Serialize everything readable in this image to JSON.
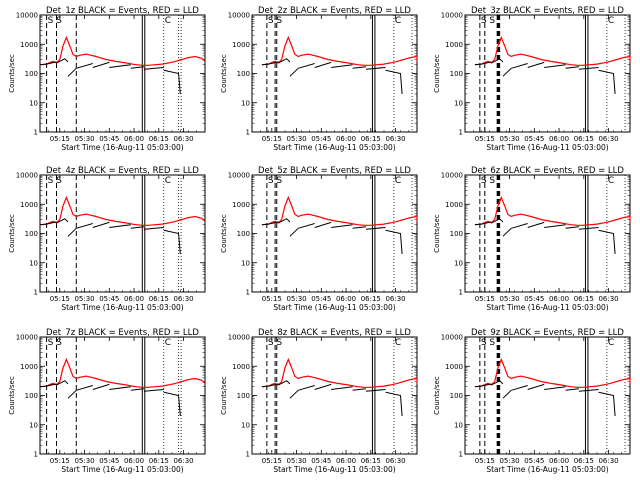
{
  "chart_data": {
    "type": "line",
    "yscale": "log",
    "ylim": [
      1,
      10000
    ],
    "xlim_minutes_from_start": [
      0,
      100
    ],
    "common": {
      "ylabel": "Counts/sec",
      "xlabel": "Start Time (16-Aug-11 05:03:00)",
      "yticks": [
        "1",
        "10",
        "100",
        "1000",
        "10000"
      ],
      "xticks_type_a": [
        "05:15",
        "05:30",
        "05:45",
        "06:00",
        "06:15",
        "06:30"
      ],
      "xticks_type_b": [
        "05:15",
        "05:30",
        "05:45",
        "06:00",
        "06:15",
        "06:30"
      ],
      "series_colors": {
        "events": "#000000",
        "lld": "#ff0000"
      },
      "annotations": {
        "s_markers": "S S",
        "c_marker": "C"
      }
    },
    "panels": [
      {
        "title": "Det_1z BLACK = Events, RED = LLD",
        "xtick_set": "a",
        "dash_lines": [
          4,
          10,
          22
        ],
        "solid_lines": [
          62,
          63.5
        ],
        "dot_lines": [
          75,
          84,
          85.5
        ]
      },
      {
        "title": "Det_2z BLACK = Events, RED = LLD",
        "xtick_set": "b",
        "dash_lines": [
          9,
          14,
          15
        ],
        "solid_lines": [
          73,
          74.5
        ],
        "dot_lines": [
          86,
          97
        ]
      },
      {
        "title": "Det_3z BLACK = Events, RED = LLD",
        "xtick_set": "b",
        "dash_lines": [
          9,
          12,
          19.5,
          20,
          20.5,
          21
        ],
        "solid_lines": [
          73,
          74.5
        ],
        "dot_lines": [
          86,
          97
        ]
      },
      {
        "title": "Det_4z BLACK = Events, RED = LLD",
        "xtick_set": "a",
        "dash_lines": [
          4,
          10,
          22
        ],
        "solid_lines": [
          62,
          63.5
        ],
        "dot_lines": [
          75,
          84,
          85.5
        ]
      },
      {
        "title": "Det_5z BLACK = Events, RED = LLD",
        "xtick_set": "b",
        "dash_lines": [
          9,
          14,
          15
        ],
        "solid_lines": [
          73,
          74.5
        ],
        "dot_lines": [
          86,
          97
        ]
      },
      {
        "title": "Det_6z BLACK = Events, RED = LLD",
        "xtick_set": "b",
        "dash_lines": [
          9,
          12,
          19.5,
          20,
          20.5,
          21
        ],
        "solid_lines": [
          73,
          74.5
        ],
        "dot_lines": [
          86,
          97
        ]
      },
      {
        "title": "Det_7z BLACK = Events, RED = LLD",
        "xtick_set": "a",
        "dash_lines": [
          4,
          10,
          22
        ],
        "solid_lines": [
          62,
          63.5
        ],
        "dot_lines": [
          75,
          84,
          85.5
        ]
      },
      {
        "title": "Det_8z BLACK = Events, RED = LLD",
        "xtick_set": "b",
        "dash_lines": [
          9,
          14,
          15
        ],
        "solid_lines": [
          73,
          74.5
        ],
        "dot_lines": [
          86,
          97
        ]
      },
      {
        "title": "Det_9z BLACK = Events, RED = LLD",
        "xtick_set": "b",
        "dash_lines": [
          9,
          12,
          19.5,
          20,
          20.5,
          21
        ],
        "solid_lines": [
          73,
          74.5
        ],
        "dot_lines": [
          86,
          97
        ]
      }
    ],
    "series_template": {
      "lld_red": {
        "x": [
          0,
          4,
          6,
          8,
          10,
          12,
          14,
          16,
          18,
          20,
          22,
          24,
          28,
          34,
          40,
          46,
          52,
          58,
          62,
          66,
          70,
          74,
          78,
          82,
          86,
          90,
          94,
          98,
          100
        ],
        "y": [
          200,
          210,
          240,
          260,
          230,
          300,
          900,
          1700,
          900,
          450,
          380,
          420,
          460,
          380,
          300,
          260,
          230,
          200,
          190,
          190,
          200,
          210,
          230,
          260,
          300,
          350,
          380,
          330,
          260
        ]
      },
      "events_black_segments": [
        {
          "x": [
            0,
            4
          ],
          "y": [
            200,
            210
          ]
        },
        {
          "x": [
            4,
            10
          ],
          "y": [
            210,
            250
          ]
        },
        {
          "x": [
            10,
            13,
            15,
            17
          ],
          "y": [
            230,
            280,
            320,
            250
          ]
        },
        {
          "x": [
            17,
            22
          ],
          "y": [
            80,
            150
          ]
        },
        {
          "x": [
            22,
            32
          ],
          "y": [
            150,
            220
          ]
        },
        {
          "x": [
            32,
            42
          ],
          "y": [
            160,
            240
          ]
        },
        {
          "x": [
            42,
            55
          ],
          "y": [
            160,
            200
          ]
        },
        {
          "x": [
            55,
            63
          ],
          "y": [
            150,
            170
          ]
        },
        {
          "x": [
            63,
            75
          ],
          "y": [
            140,
            160
          ]
        },
        {
          "x": [
            75,
            84,
            85
          ],
          "y": [
            130,
            100,
            20
          ]
        }
      ]
    }
  }
}
